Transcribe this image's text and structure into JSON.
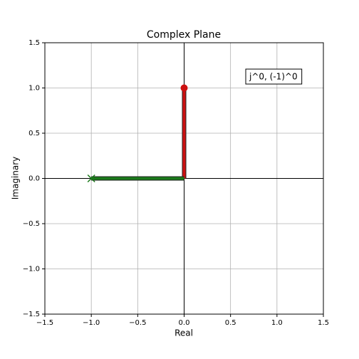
{
  "chart_data": {
    "type": "vector",
    "title": "Complex Plane",
    "x_label": "Real",
    "y_label": "Imaginary",
    "annotation": "j^0, (-1)^0",
    "series": [
      {
        "color": "#cc1111",
        "marker": "o",
        "x": [
          0
        ],
        "y": [
          1
        ]
      },
      {
        "color": "#1a7a1a",
        "marker": "x",
        "x": [
          -1
        ],
        "y": [
          0
        ]
      }
    ],
    "xlim": [
      -1.5,
      1.5
    ],
    "ylim": [
      -1.5,
      1.5
    ],
    "xticks": [
      {
        "value": -1.5,
        "label": "−1.5"
      },
      {
        "value": -1,
        "label": "−1.0"
      },
      {
        "value": -0.5,
        "label": "−0.5"
      },
      {
        "value": 0,
        "label": "0.0"
      },
      {
        "value": 0.5,
        "label": "0.5"
      },
      {
        "value": 1,
        "label": "1.0"
      },
      {
        "value": 1.5,
        "label": "1.5"
      }
    ],
    "yticks": [
      {
        "value": -1.5,
        "label": "−1.5"
      },
      {
        "value": -1,
        "label": "−1.0"
      },
      {
        "value": -0.5,
        "label": "−0.5"
      },
      {
        "value": 0,
        "label": "0.0"
      },
      {
        "value": 0.5,
        "label": "0.5"
      },
      {
        "value": 1,
        "label": "1.0"
      },
      {
        "value": 1.5,
        "label": "1.5"
      }
    ],
    "grid": true
  }
}
